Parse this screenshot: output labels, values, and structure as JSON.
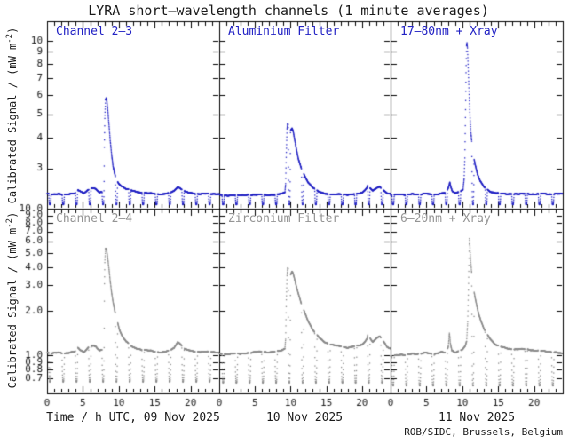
{
  "title": "LYRA short–wavelength channels (1 minute averages)",
  "credit": "ROB/SIDC, Brussels, Belgium",
  "ylabel": {
    "pre": "Calibrated Signal / (mW m",
    "sup": "-2",
    "post": ")"
  },
  "xlabels": [
    "Time / h UTC, 09 Nov 2025",
    "10 Nov 2025",
    "11 Nov 2025"
  ],
  "colors": {
    "top_series": "#2222c4",
    "bottom_series": "#8c8c8c",
    "top_label": "#2222c4",
    "bottom_label": "#949494",
    "axis": "#000000"
  },
  "chart_data": {
    "type": "scatter",
    "title": "LYRA short–wavelength channels (1 minute averages)",
    "ylabel": "Calibrated Signal / (mW m-2)",
    "x_axis": {
      "range": [
        0,
        24
      ],
      "minor_step": 1,
      "major_ticks": [
        0,
        5,
        10,
        15,
        20
      ],
      "tick_labels": [
        "0",
        "5",
        "10",
        "15",
        "20"
      ]
    },
    "rows": [
      {
        "ylog": true,
        "yrange": [
          2.05,
          12.0
        ],
        "noise": 0.005,
        "ticks": [
          3,
          4,
          5,
          6,
          7,
          8,
          9,
          10
        ],
        "tick_labels": [
          "3",
          "4",
          "5",
          "6",
          "7",
          "8",
          "9",
          "10"
        ]
      },
      {
        "ylog": true,
        "yrange": [
          0.55,
          10.0
        ],
        "noise": 0.01,
        "ticks": [
          0.7,
          0.8,
          0.9,
          1,
          2,
          3,
          4,
          5,
          6,
          7,
          8,
          9,
          10
        ],
        "tick_labels": [
          "0.7",
          "0.8",
          "0.9",
          "1.0",
          "2.0",
          "3.0",
          "4.0",
          "5.0",
          "6.0",
          "7.0",
          "8.0",
          "9.0",
          "10.0"
        ]
      }
    ],
    "panels": [
      {
        "label": "Channel 2–3",
        "row": 0,
        "col": 0,
        "color": "#2222c4",
        "dips": {
          "start": 0.4,
          "period": 1.855,
          "width": 0.32,
          "floor": 2.13
        },
        "points": [
          [
            0,
            2.36
          ],
          [
            0.8,
            2.34
          ],
          [
            1.6,
            2.36
          ],
          [
            2.4,
            2.34
          ],
          [
            3.2,
            2.35
          ],
          [
            3.9,
            2.37
          ],
          [
            4.2,
            2.45
          ],
          [
            4.6,
            2.43
          ],
          [
            5.1,
            2.37
          ],
          [
            5.7,
            2.44
          ],
          [
            6.2,
            2.48
          ],
          [
            6.8,
            2.47
          ],
          [
            7.3,
            2.39
          ],
          [
            7.7,
            2.41
          ],
          [
            7.85,
            2.55
          ],
          [
            7.95,
            3.2
          ],
          [
            8.05,
            4.8
          ],
          [
            8.15,
            5.7
          ],
          [
            8.25,
            5.82
          ],
          [
            8.35,
            5.6
          ],
          [
            8.5,
            5.05
          ],
          [
            8.65,
            4.45
          ],
          [
            8.8,
            3.9
          ],
          [
            9.0,
            3.4
          ],
          [
            9.2,
            3.05
          ],
          [
            9.5,
            2.8
          ],
          [
            9.9,
            2.62
          ],
          [
            10.3,
            2.55
          ],
          [
            11,
            2.47
          ],
          [
            12,
            2.42
          ],
          [
            13,
            2.39
          ],
          [
            14,
            2.37
          ],
          [
            15,
            2.36
          ],
          [
            16,
            2.35
          ],
          [
            17,
            2.37
          ],
          [
            17.7,
            2.42
          ],
          [
            18.2,
            2.52
          ],
          [
            18.7,
            2.47
          ],
          [
            19.2,
            2.41
          ],
          [
            20,
            2.37
          ],
          [
            21,
            2.36
          ],
          [
            22,
            2.36
          ],
          [
            23,
            2.35
          ],
          [
            24,
            2.36
          ]
        ]
      },
      {
        "label": "Aluminium Filter",
        "row": 0,
        "col": 1,
        "color": "#2222c4",
        "dips": {
          "start": 0.55,
          "period": 1.855,
          "width": 0.32,
          "floor": 2.13
        },
        "points": [
          [
            0,
            2.33
          ],
          [
            1,
            2.32
          ],
          [
            2,
            2.33
          ],
          [
            3,
            2.32
          ],
          [
            4,
            2.34
          ],
          [
            5,
            2.33
          ],
          [
            6,
            2.34
          ],
          [
            7,
            2.33
          ],
          [
            8,
            2.34
          ],
          [
            8.8,
            2.36
          ],
          [
            9.2,
            2.4
          ],
          [
            9.3,
            2.6
          ],
          [
            9.4,
            3.5
          ],
          [
            9.5,
            4.35
          ],
          [
            9.6,
            4.58
          ],
          [
            9.7,
            4.48
          ],
          [
            9.85,
            4.25
          ],
          [
            10.0,
            4.3
          ],
          [
            10.2,
            4.38
          ],
          [
            10.35,
            4.25
          ],
          [
            10.55,
            3.95
          ],
          [
            10.8,
            3.6
          ],
          [
            11.1,
            3.25
          ],
          [
            11.5,
            3.0
          ],
          [
            12,
            2.78
          ],
          [
            12.5,
            2.62
          ],
          [
            13,
            2.52
          ],
          [
            13.5,
            2.45
          ],
          [
            14,
            2.4
          ],
          [
            15,
            2.36
          ],
          [
            16,
            2.34
          ],
          [
            17,
            2.35
          ],
          [
            18,
            2.34
          ],
          [
            19,
            2.35
          ],
          [
            20,
            2.38
          ],
          [
            20.7,
            2.5
          ],
          [
            20.9,
            2.64
          ],
          [
            21.1,
            2.5
          ],
          [
            21.5,
            2.42
          ],
          [
            22,
            2.48
          ],
          [
            22.5,
            2.52
          ],
          [
            23,
            2.44
          ],
          [
            23.5,
            2.38
          ],
          [
            24,
            2.35
          ]
        ]
      },
      {
        "label": "17–80nm + Xray",
        "row": 0,
        "col": 2,
        "color": "#2222c4",
        "dips": {
          "start": 0.35,
          "period": 1.855,
          "width": 0.32,
          "floor": 2.13
        },
        "points": [
          [
            0,
            2.33
          ],
          [
            1,
            2.35
          ],
          [
            2,
            2.33
          ],
          [
            3,
            2.36
          ],
          [
            4,
            2.34
          ],
          [
            5,
            2.36
          ],
          [
            6,
            2.34
          ],
          [
            7,
            2.36
          ],
          [
            7.8,
            2.38
          ],
          [
            8.1,
            2.52
          ],
          [
            8.25,
            2.64
          ],
          [
            8.4,
            2.52
          ],
          [
            8.6,
            2.42
          ],
          [
            9,
            2.38
          ],
          [
            9.6,
            2.4
          ],
          [
            10.1,
            2.45
          ],
          [
            10.25,
            2.7
          ],
          [
            10.35,
            3.3
          ],
          [
            10.45,
            5.2
          ],
          [
            10.52,
            7.5
          ],
          [
            10.58,
            9.5
          ],
          [
            10.65,
            9.8
          ],
          [
            10.72,
            9.3
          ],
          [
            10.8,
            8.0
          ],
          [
            10.9,
            6.6
          ],
          [
            11.0,
            5.5
          ],
          [
            11.1,
            4.7
          ],
          [
            11.2,
            4.2
          ],
          [
            11.35,
            3.8
          ],
          [
            11.55,
            3.4
          ],
          [
            11.8,
            3.1
          ],
          [
            12.1,
            2.85
          ],
          [
            12.5,
            2.65
          ],
          [
            13,
            2.52
          ],
          [
            13.5,
            2.45
          ],
          [
            14,
            2.4
          ],
          [
            15,
            2.37
          ],
          [
            16,
            2.35
          ],
          [
            17,
            2.36
          ],
          [
            18,
            2.35
          ],
          [
            19,
            2.36
          ],
          [
            20,
            2.35
          ],
          [
            21,
            2.36
          ],
          [
            22,
            2.35
          ],
          [
            23,
            2.36
          ],
          [
            24,
            2.35
          ]
        ]
      },
      {
        "label": "Channel 2–4",
        "row": 1,
        "col": 0,
        "color": "#8c8c8c",
        "dips": {
          "start": 0.4,
          "period": 1.855,
          "width": 0.34,
          "floor": 0.66
        },
        "points": [
          [
            0,
            1.04
          ],
          [
            0.8,
            1.03
          ],
          [
            1.6,
            1.05
          ],
          [
            2.4,
            1.03
          ],
          [
            3.2,
            1.04
          ],
          [
            3.9,
            1.06
          ],
          [
            4.2,
            1.14
          ],
          [
            4.6,
            1.1
          ],
          [
            5.1,
            1.05
          ],
          [
            5.7,
            1.12
          ],
          [
            6.2,
            1.16
          ],
          [
            6.8,
            1.15
          ],
          [
            7.3,
            1.08
          ],
          [
            7.7,
            1.1
          ],
          [
            7.85,
            1.25
          ],
          [
            7.95,
            2.2
          ],
          [
            8.05,
            4.3
          ],
          [
            8.15,
            5.3
          ],
          [
            8.25,
            5.35
          ],
          [
            8.35,
            5.0
          ],
          [
            8.5,
            4.4
          ],
          [
            8.65,
            3.8
          ],
          [
            8.8,
            3.2
          ],
          [
            9.0,
            2.65
          ],
          [
            9.2,
            2.3
          ],
          [
            9.5,
            1.95
          ],
          [
            9.8,
            1.7
          ],
          [
            10.1,
            1.5
          ],
          [
            10.5,
            1.35
          ],
          [
            11,
            1.25
          ],
          [
            11.5,
            1.18
          ],
          [
            12,
            1.13
          ],
          [
            13,
            1.1
          ],
          [
            14,
            1.08
          ],
          [
            15,
            1.06
          ],
          [
            16,
            1.05
          ],
          [
            17,
            1.07
          ],
          [
            17.7,
            1.12
          ],
          [
            18.2,
            1.24
          ],
          [
            18.7,
            1.18
          ],
          [
            19.2,
            1.1
          ],
          [
            20,
            1.07
          ],
          [
            21,
            1.06
          ],
          [
            22,
            1.06
          ],
          [
            23,
            1.05
          ],
          [
            24,
            1.05
          ]
        ]
      },
      {
        "label": "Zirconium Filter",
        "row": 1,
        "col": 1,
        "color": "#8c8c8c",
        "dips": {
          "start": 0.55,
          "period": 1.855,
          "width": 0.34,
          "floor": 0.65
        },
        "points": [
          [
            0,
            1.02
          ],
          [
            1,
            1.02
          ],
          [
            2,
            1.03
          ],
          [
            3,
            1.02
          ],
          [
            4,
            1.04
          ],
          [
            5,
            1.05
          ],
          [
            6,
            1.06
          ],
          [
            7,
            1.05
          ],
          [
            8,
            1.06
          ],
          [
            8.8,
            1.08
          ],
          [
            9.2,
            1.12
          ],
          [
            9.3,
            1.3
          ],
          [
            9.4,
            2.4
          ],
          [
            9.5,
            3.5
          ],
          [
            9.6,
            3.95
          ],
          [
            9.7,
            3.85
          ],
          [
            9.85,
            3.6
          ],
          [
            10.0,
            3.55
          ],
          [
            10.2,
            3.75
          ],
          [
            10.35,
            3.6
          ],
          [
            10.55,
            3.3
          ],
          [
            10.8,
            2.95
          ],
          [
            11.1,
            2.6
          ],
          [
            11.5,
            2.25
          ],
          [
            12,
            1.95
          ],
          [
            12.5,
            1.7
          ],
          [
            13,
            1.52
          ],
          [
            13.5,
            1.4
          ],
          [
            14,
            1.32
          ],
          [
            14.5,
            1.26
          ],
          [
            15,
            1.22
          ],
          [
            16,
            1.17
          ],
          [
            17,
            1.15
          ],
          [
            18,
            1.13
          ],
          [
            19,
            1.15
          ],
          [
            20,
            1.18
          ],
          [
            20.7,
            1.3
          ],
          [
            20.9,
            1.48
          ],
          [
            21.1,
            1.32
          ],
          [
            21.5,
            1.22
          ],
          [
            22,
            1.3
          ],
          [
            22.5,
            1.35
          ],
          [
            23,
            1.25
          ],
          [
            23.5,
            1.15
          ],
          [
            24,
            1.1
          ]
        ]
      },
      {
        "label": "6–20nm + Xray",
        "row": 1,
        "col": 2,
        "color": "#8c8c8c",
        "dips": {
          "start": 0.35,
          "period": 1.855,
          "width": 0.34,
          "floor": 0.62
        },
        "points": [
          [
            0,
            0.99
          ],
          [
            1,
            1.01
          ],
          [
            2,
            1.0
          ],
          [
            3,
            1.03
          ],
          [
            4,
            1.02
          ],
          [
            5,
            1.04
          ],
          [
            6,
            1.02
          ],
          [
            7,
            1.05
          ],
          [
            7.8,
            1.04
          ],
          [
            8.05,
            1.15
          ],
          [
            8.2,
            1.42
          ],
          [
            8.35,
            1.2
          ],
          [
            8.55,
            1.08
          ],
          [
            9,
            1.05
          ],
          [
            9.6,
            1.07
          ],
          [
            10.1,
            1.1
          ],
          [
            10.4,
            1.15
          ],
          [
            10.6,
            1.25
          ],
          [
            10.75,
            1.7
          ],
          [
            10.85,
            2.8
          ],
          [
            10.92,
            4.2
          ],
          [
            10.98,
            6.3
          ],
          [
            11.05,
            5.6
          ],
          [
            11.12,
            4.8
          ],
          [
            11.2,
            4.2
          ],
          [
            11.3,
            3.7
          ],
          [
            11.45,
            3.2
          ],
          [
            11.6,
            2.8
          ],
          [
            11.8,
            2.45
          ],
          [
            12.0,
            2.2
          ],
          [
            12.3,
            1.9
          ],
          [
            12.6,
            1.7
          ],
          [
            13,
            1.52
          ],
          [
            13.5,
            1.38
          ],
          [
            14,
            1.28
          ],
          [
            14.5,
            1.2
          ],
          [
            15,
            1.16
          ],
          [
            16,
            1.12
          ],
          [
            17,
            1.1
          ],
          [
            18,
            1.1
          ],
          [
            19,
            1.1
          ],
          [
            20,
            1.08
          ],
          [
            21,
            1.07
          ],
          [
            22,
            1.06
          ],
          [
            23,
            1.05
          ],
          [
            24,
            1.02
          ]
        ]
      }
    ]
  }
}
